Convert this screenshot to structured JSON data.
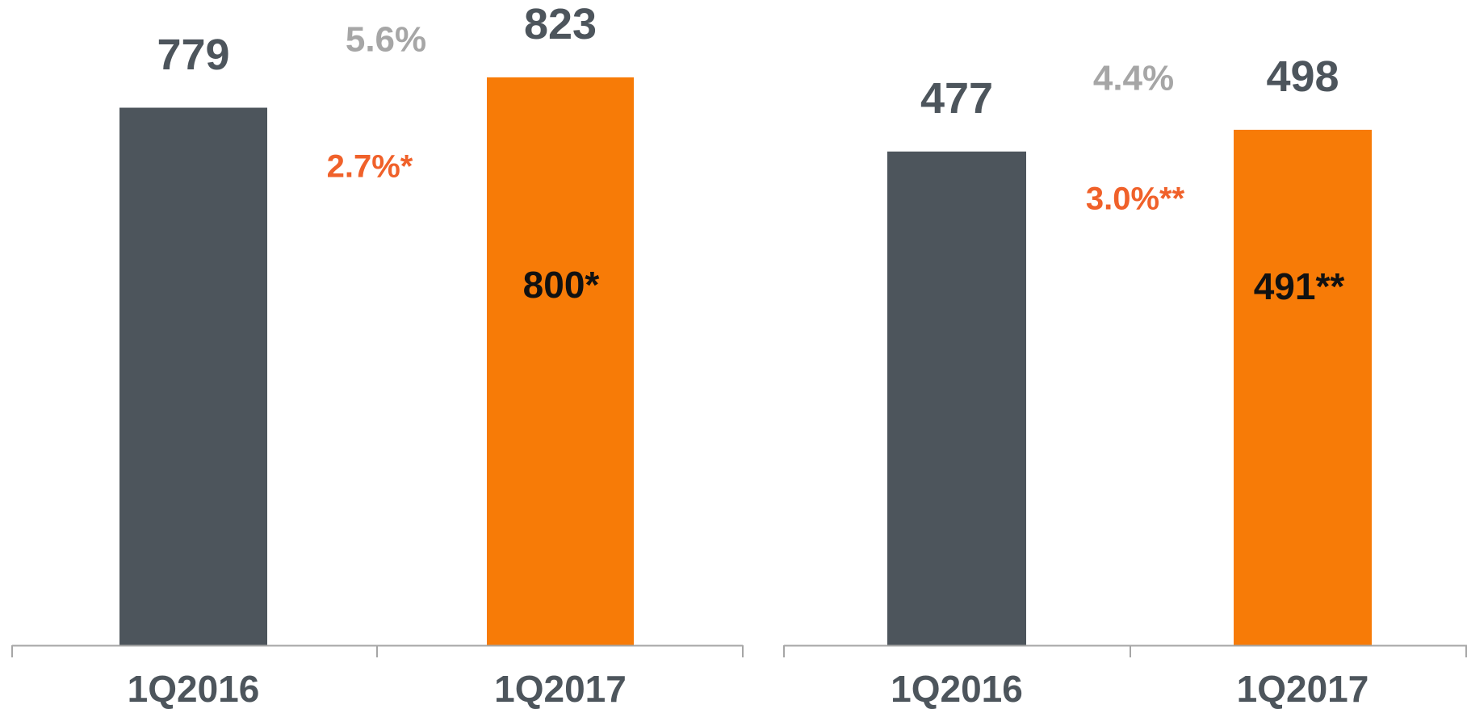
{
  "chart_data": [
    {
      "type": "bar",
      "categories": [
        "1Q2016",
        "1Q2017"
      ],
      "values": [
        779,
        823
      ],
      "colors": [
        "#4d555c",
        "#f77b07"
      ],
      "ylim": [
        0,
        900
      ],
      "annotations": [
        "5.6%",
        "2.7%*",
        "800*"
      ]
    },
    {
      "type": "bar",
      "categories": [
        "1Q2016",
        "1Q2017"
      ],
      "values": [
        477,
        498
      ],
      "colors": [
        "#4d555c",
        "#f77b07"
      ],
      "ylim": [
        0,
        600
      ],
      "annotations": [
        "4.4%",
        "3.0%**",
        "491**"
      ]
    }
  ]
}
